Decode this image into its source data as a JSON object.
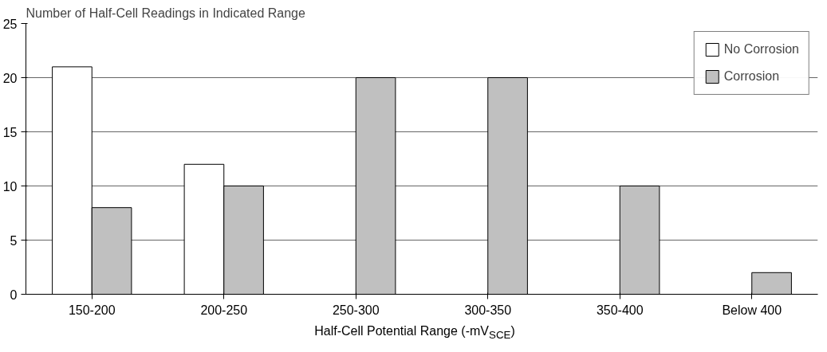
{
  "chart_data": {
    "type": "bar",
    "ylabel": "Number of Half-Cell Readings in Indicated Range",
    "xlabel": "Half-Cell Potential Range (-mV$_{SCE}$)",
    "categories": [
      "150-200",
      "200-250",
      "250-300",
      "300-350",
      "350-400",
      "Below 400"
    ],
    "series": [
      {
        "name": "No Corrosion",
        "color": "#ffffff",
        "values": [
          21,
          12,
          0,
          0,
          0,
          0
        ]
      },
      {
        "name": "Corrosion",
        "color": "#c0c0c0",
        "values": [
          8,
          10,
          20,
          20,
          10,
          2
        ]
      }
    ],
    "ylim": [
      0,
      25
    ],
    "yticks": [
      0,
      5,
      10,
      15,
      20,
      25
    ],
    "grid": "y",
    "legend": "top right"
  }
}
